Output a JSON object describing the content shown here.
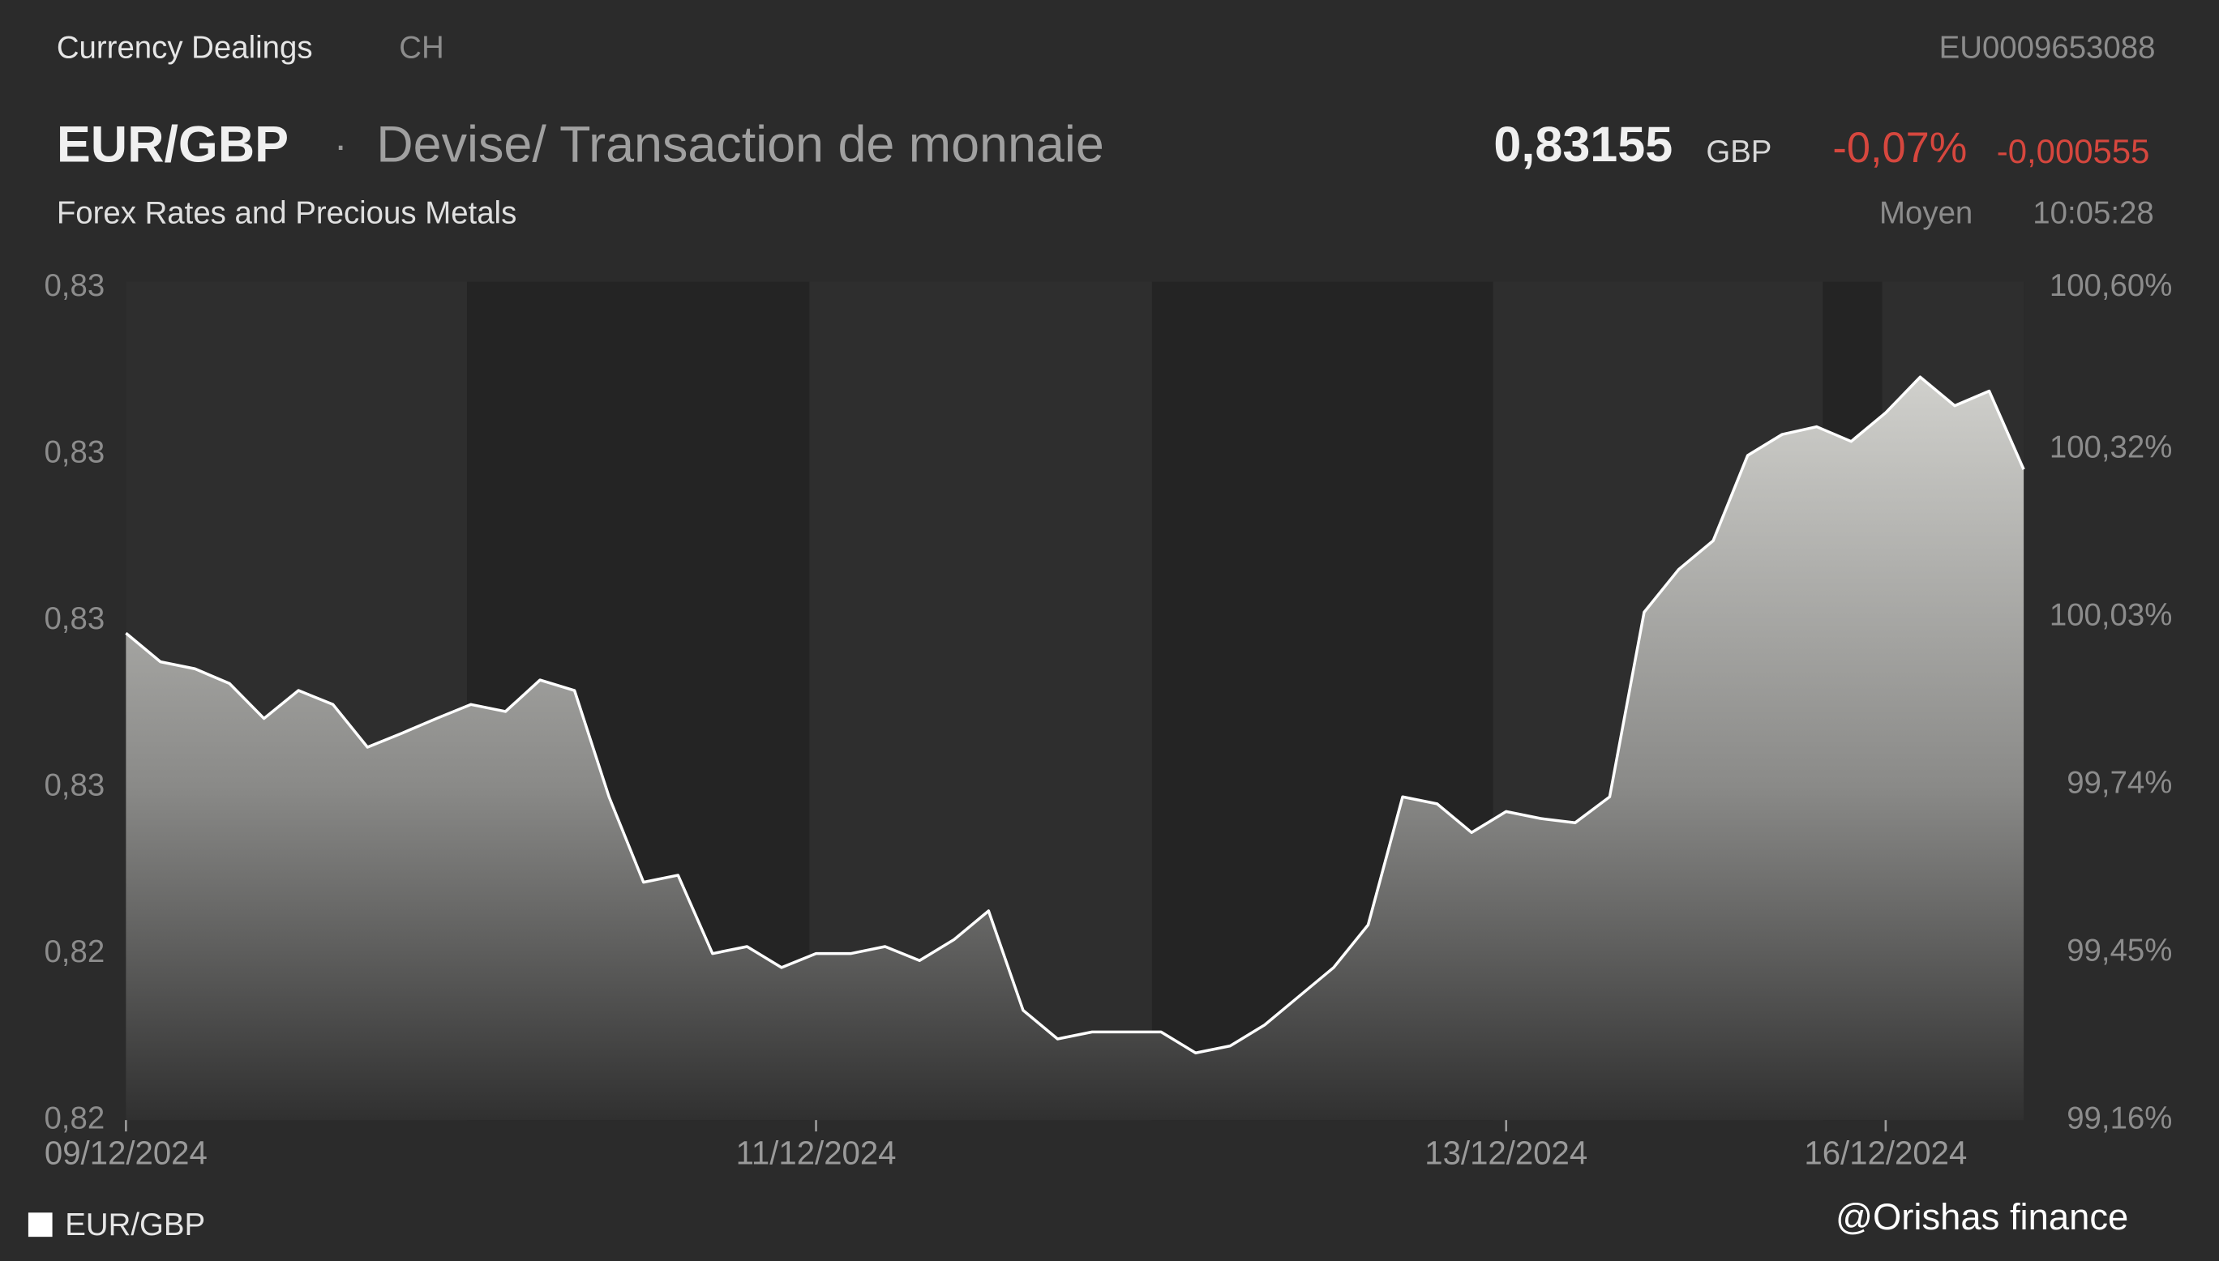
{
  "header": {
    "title": "Currency Dealings",
    "market": "CH",
    "isin": "EU0009653088",
    "pair": "EUR/GBP",
    "separator": "·",
    "description": "Devise/ Transaction de monnaie",
    "subtitle": "Forex Rates and Precious Metals",
    "price": "0,83155",
    "currency": "GBP",
    "change_pct": "-0,07%",
    "change_abs": "-0,000555",
    "price_type": "Moyen",
    "time": "10:05:28"
  },
  "watermark": "@Orishas finance",
  "chart_data": {
    "type": "area",
    "categories": [
      "09/12/2024",
      null,
      null,
      null,
      null,
      null,
      null,
      null,
      null,
      null,
      null,
      null,
      null,
      null,
      null,
      null,
      null,
      null,
      null,
      null,
      "11/12/2024",
      null,
      null,
      null,
      null,
      null,
      null,
      null,
      null,
      null,
      null,
      null,
      null,
      null,
      null,
      null,
      null,
      null,
      null,
      null,
      "13/12/2024",
      null,
      null,
      null,
      null,
      null,
      null,
      null,
      null,
      null,
      null,
      "16/12/2024",
      null,
      null,
      null,
      null
    ],
    "series": [
      {
        "name": "EUR/GBP",
        "color": "#ffffff",
        "values": [
          0.82906,
          0.82865,
          0.82855,
          0.82834,
          0.82784,
          0.82824,
          0.82804,
          0.82743,
          0.82763,
          0.82784,
          0.82804,
          0.82794,
          0.82839,
          0.82824,
          0.82672,
          0.8255,
          0.8256,
          0.82448,
          0.82458,
          0.82428,
          0.82448,
          0.82448,
          0.82458,
          0.82438,
          0.82468,
          0.82509,
          0.82367,
          0.82326,
          0.82336,
          0.82336,
          0.82336,
          0.82306,
          0.82316,
          0.82346,
          0.82387,
          0.82428,
          0.82489,
          0.82672,
          0.82662,
          0.82621,
          0.82651,
          0.82641,
          0.82635,
          0.82672,
          0.82936,
          0.82997,
          0.83038,
          0.8316,
          0.8319,
          0.83201,
          0.8318,
          0.83221,
          0.83272,
          0.83231,
          0.83252,
          0.8314
        ]
      }
    ],
    "ylim": [
      0.8221,
      0.834
    ],
    "yticks": [
      {
        "value": 0.8221,
        "label": "0,82"
      },
      {
        "value": 0.82448,
        "label": "0,82"
      },
      {
        "value": 0.82686,
        "label": "0,83"
      },
      {
        "value": 0.82924,
        "label": "0,83"
      },
      {
        "value": 0.83162,
        "label": "0,83"
      },
      {
        "value": 0.834,
        "label": "0,83"
      }
    ],
    "y2lim": [
      99.16,
      100.6
    ],
    "y2ticks": [
      {
        "value": 99.16,
        "label": "99,16%"
      },
      {
        "value": 99.45,
        "label": "99,45%"
      },
      {
        "value": 99.74,
        "label": "99,74%"
      },
      {
        "value": 100.03,
        "label": "100,03%"
      },
      {
        "value": 100.32,
        "label": "100,32%"
      },
      {
        "value": 100.6,
        "label": "100,60%"
      }
    ]
  }
}
